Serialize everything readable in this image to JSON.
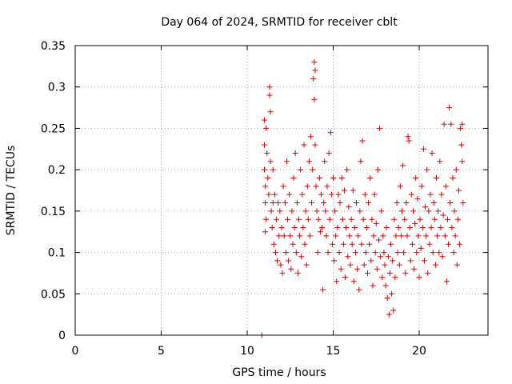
{
  "chart_data": {
    "type": "scatter",
    "title": "Day 064 of 2024, SRMTID for receiver cblt",
    "xlabel": "GPS time / hours",
    "ylabel": "SRMTID / TECUs",
    "xlim": [
      0,
      24
    ],
    "ylim": [
      0,
      0.35
    ],
    "x_ticks": [
      0,
      5,
      10,
      15,
      20
    ],
    "y_ticks": [
      0,
      0.05,
      0.1,
      0.15,
      0.2,
      0.25,
      0.3,
      0.35
    ],
    "x_tick_labels": [
      "0",
      "5",
      "10",
      "15",
      "20"
    ],
    "y_tick_labels": [
      "0",
      "0.05",
      "0.1",
      "0.15",
      "0.2",
      "0.25",
      "0.3",
      "0.35"
    ],
    "grid": true,
    "marker": "+",
    "color": "#e00000",
    "series": [
      {
        "points": [
          [
            10.85,
            0.0
          ],
          [
            11.0,
            0.26
          ],
          [
            11.0,
            0.23
          ],
          [
            11.0,
            0.2
          ],
          [
            11.05,
            0.18
          ],
          [
            11.05,
            0.16
          ],
          [
            11.1,
            0.14
          ],
          [
            11.05,
            0.125
          ],
          [
            11.1,
            0.25
          ],
          [
            11.15,
            0.22
          ],
          [
            11.2,
            0.19
          ],
          [
            11.25,
            0.17
          ],
          [
            11.3,
            0.29
          ],
          [
            11.3,
            0.3
          ],
          [
            11.35,
            0.27
          ],
          [
            11.35,
            0.21
          ],
          [
            11.4,
            0.15
          ],
          [
            11.45,
            0.13
          ],
          [
            11.5,
            0.2
          ],
          [
            11.5,
            0.16
          ],
          [
            11.55,
            0.11
          ],
          [
            11.6,
            0.17
          ],
          [
            11.65,
            0.1
          ],
          [
            11.7,
            0.14
          ],
          [
            11.75,
            0.09
          ],
          [
            11.8,
            0.16
          ],
          [
            11.85,
            0.12
          ],
          [
            11.9,
            0.15
          ],
          [
            11.95,
            0.085
          ],
          [
            12.0,
            0.13
          ],
          [
            12.05,
            0.075
          ],
          [
            12.1,
            0.18
          ],
          [
            12.15,
            0.12
          ],
          [
            12.2,
            0.16
          ],
          [
            12.25,
            0.1
          ],
          [
            12.3,
            0.21
          ],
          [
            12.35,
            0.14
          ],
          [
            12.4,
            0.09
          ],
          [
            12.45,
            0.17
          ],
          [
            12.5,
            0.12
          ],
          [
            12.55,
            0.08
          ],
          [
            12.6,
            0.15
          ],
          [
            12.65,
            0.11
          ],
          [
            12.7,
            0.19
          ],
          [
            12.75,
            0.13
          ],
          [
            12.8,
            0.22
          ],
          [
            12.85,
            0.1
          ],
          [
            12.9,
            0.16
          ],
          [
            12.95,
            0.075
          ],
          [
            13.0,
            0.14
          ],
          [
            13.05,
            0.12
          ],
          [
            13.1,
            0.2
          ],
          [
            13.15,
            0.095
          ],
          [
            13.2,
            0.17
          ],
          [
            13.25,
            0.13
          ],
          [
            13.3,
            0.23
          ],
          [
            13.35,
            0.11
          ],
          [
            13.4,
            0.15
          ],
          [
            13.45,
            0.085
          ],
          [
            13.5,
            0.18
          ],
          [
            13.55,
            0.14
          ],
          [
            13.6,
            0.21
          ],
          [
            13.65,
            0.12
          ],
          [
            13.7,
            0.24
          ],
          [
            13.75,
            0.16
          ],
          [
            13.8,
            0.2
          ],
          [
            13.85,
            0.31
          ],
          [
            13.9,
            0.33
          ],
          [
            13.9,
            0.285
          ],
          [
            13.95,
            0.23
          ],
          [
            13.95,
            0.32
          ],
          [
            14.0,
            0.18
          ],
          [
            14.05,
            0.15
          ],
          [
            14.1,
            0.1
          ],
          [
            14.15,
            0.14
          ],
          [
            14.2,
            0.19
          ],
          [
            14.25,
            0.125
          ],
          [
            14.3,
            0.17
          ],
          [
            14.35,
            0.13
          ],
          [
            14.4,
            0.055
          ],
          [
            14.45,
            0.16
          ],
          [
            14.5,
            0.21
          ],
          [
            14.55,
            0.15
          ],
          [
            14.6,
            0.12
          ],
          [
            14.65,
            0.18
          ],
          [
            14.7,
            0.1
          ],
          [
            14.75,
            0.22
          ],
          [
            14.8,
            0.14
          ],
          [
            14.85,
            0.245
          ],
          [
            14.9,
            0.17
          ],
          [
            14.95,
            0.11
          ],
          [
            15.0,
            0.19
          ],
          [
            15.05,
            0.09
          ],
          [
            15.1,
            0.15
          ],
          [
            15.15,
            0.12
          ],
          [
            15.2,
            0.065
          ],
          [
            15.25,
            0.13
          ],
          [
            15.3,
            0.17
          ],
          [
            15.35,
            0.1
          ],
          [
            15.4,
            0.16
          ],
          [
            15.45,
            0.08
          ],
          [
            15.5,
            0.19
          ],
          [
            15.55,
            0.14
          ],
          [
            15.6,
            0.11
          ],
          [
            15.65,
            0.175
          ],
          [
            15.7,
            0.07
          ],
          [
            15.75,
            0.13
          ],
          [
            15.8,
            0.2
          ],
          [
            15.85,
            0.095
          ],
          [
            15.9,
            0.155
          ],
          [
            15.95,
            0.12
          ],
          [
            16.0,
            0.085
          ],
          [
            16.05,
            0.14
          ],
          [
            16.1,
            0.11
          ],
          [
            16.15,
            0.175
          ],
          [
            16.2,
            0.065
          ],
          [
            16.25,
            0.13
          ],
          [
            16.3,
            0.1
          ],
          [
            16.35,
            0.16
          ],
          [
            16.4,
            0.08
          ],
          [
            16.45,
            0.12
          ],
          [
            16.5,
            0.055
          ],
          [
            16.55,
            0.15
          ],
          [
            16.6,
            0.21
          ],
          [
            16.65,
            0.11
          ],
          [
            16.7,
            0.235
          ],
          [
            16.75,
            0.14
          ],
          [
            16.8,
            0.085
          ],
          [
            16.85,
            0.17
          ],
          [
            16.9,
            0.1
          ],
          [
            16.95,
            0.13
          ],
          [
            17.0,
            0.075
          ],
          [
            17.05,
            0.16
          ],
          [
            17.1,
            0.11
          ],
          [
            17.15,
            0.19
          ],
          [
            17.2,
            0.09
          ],
          [
            17.25,
            0.14
          ],
          [
            17.3,
            0.06
          ],
          [
            17.35,
            0.12
          ],
          [
            17.4,
            0.17
          ],
          [
            17.45,
            0.1
          ],
          [
            17.5,
            0.135
          ],
          [
            17.55,
            0.08
          ],
          [
            17.6,
            0.2
          ],
          [
            17.65,
            0.115
          ],
          [
            17.7,
            0.25
          ],
          [
            17.75,
            0.095
          ],
          [
            17.8,
            0.15
          ],
          [
            17.85,
            0.07
          ],
          [
            17.9,
            0.12
          ],
          [
            17.95,
            0.1
          ],
          [
            18.0,
            0.085
          ],
          [
            18.05,
            0.06
          ],
          [
            18.1,
            0.13
          ],
          [
            18.15,
            0.045
          ],
          [
            18.2,
            0.095
          ],
          [
            18.25,
            0.025
          ],
          [
            18.3,
            0.075
          ],
          [
            18.35,
            0.11
          ],
          [
            18.4,
            0.05
          ],
          [
            18.45,
            0.09
          ],
          [
            18.5,
            0.03
          ],
          [
            18.55,
            0.14
          ],
          [
            18.6,
            0.07
          ],
          [
            18.65,
            0.12
          ],
          [
            18.7,
            0.16
          ],
          [
            18.75,
            0.1
          ],
          [
            18.8,
            0.13
          ],
          [
            18.85,
            0.085
          ],
          [
            18.9,
            0.18
          ],
          [
            18.95,
            0.12
          ],
          [
            19.0,
            0.15
          ],
          [
            19.05,
            0.205
          ],
          [
            19.1,
            0.1
          ],
          [
            19.15,
            0.14
          ],
          [
            19.2,
            0.075
          ],
          [
            19.25,
            0.16
          ],
          [
            19.3,
            0.12
          ],
          [
            19.35,
            0.24
          ],
          [
            19.4,
            0.235
          ],
          [
            19.45,
            0.13
          ],
          [
            19.5,
            0.09
          ],
          [
            19.55,
            0.17
          ],
          [
            19.6,
            0.11
          ],
          [
            19.65,
            0.15
          ],
          [
            19.7,
            0.08
          ],
          [
            19.75,
            0.135
          ],
          [
            19.8,
            0.19
          ],
          [
            19.85,
            0.1
          ],
          [
            19.9,
            0.165
          ],
          [
            19.95,
            0.12
          ],
          [
            20.0,
            0.07
          ],
          [
            20.05,
            0.14
          ],
          [
            20.1,
            0.105
          ],
          [
            20.15,
            0.18
          ],
          [
            20.2,
            0.13
          ],
          [
            20.25,
            0.225
          ],
          [
            20.3,
            0.09
          ],
          [
            20.35,
            0.155
          ],
          [
            20.4,
            0.12
          ],
          [
            20.45,
            0.2
          ],
          [
            20.5,
            0.075
          ],
          [
            20.55,
            0.15
          ],
          [
            20.6,
            0.11
          ],
          [
            20.65,
            0.17
          ],
          [
            20.7,
            0.13
          ],
          [
            20.75,
            0.22
          ],
          [
            20.8,
            0.1
          ],
          [
            20.85,
            0.16
          ],
          [
            20.9,
            0.14
          ],
          [
            20.95,
            0.085
          ],
          [
            21.0,
            0.19
          ],
          [
            21.05,
            0.12
          ],
          [
            21.1,
            0.15
          ],
          [
            21.15,
            0.1
          ],
          [
            21.2,
            0.21
          ],
          [
            21.25,
            0.13
          ],
          [
            21.3,
            0.17
          ],
          [
            21.35,
            0.095
          ],
          [
            21.4,
            0.145
          ],
          [
            21.45,
            0.255
          ],
          [
            21.5,
            0.12
          ],
          [
            21.55,
            0.18
          ],
          [
            21.6,
            0.065
          ],
          [
            21.65,
            0.14
          ],
          [
            21.7,
            0.11
          ],
          [
            21.75,
            0.275
          ],
          [
            21.8,
            0.16
          ],
          [
            21.85,
            0.255
          ],
          [
            21.9,
            0.13
          ],
          [
            21.95,
            0.19
          ],
          [
            22.0,
            0.1
          ],
          [
            22.05,
            0.15
          ],
          [
            22.1,
            0.12
          ],
          [
            22.15,
            0.2
          ],
          [
            22.2,
            0.085
          ],
          [
            22.25,
            0.14
          ],
          [
            22.3,
            0.175
          ],
          [
            22.35,
            0.11
          ],
          [
            22.4,
            0.25
          ],
          [
            22.45,
            0.23
          ],
          [
            22.5,
            0.21
          ],
          [
            22.5,
            0.255
          ],
          [
            22.55,
            0.16
          ]
        ]
      }
    ]
  }
}
